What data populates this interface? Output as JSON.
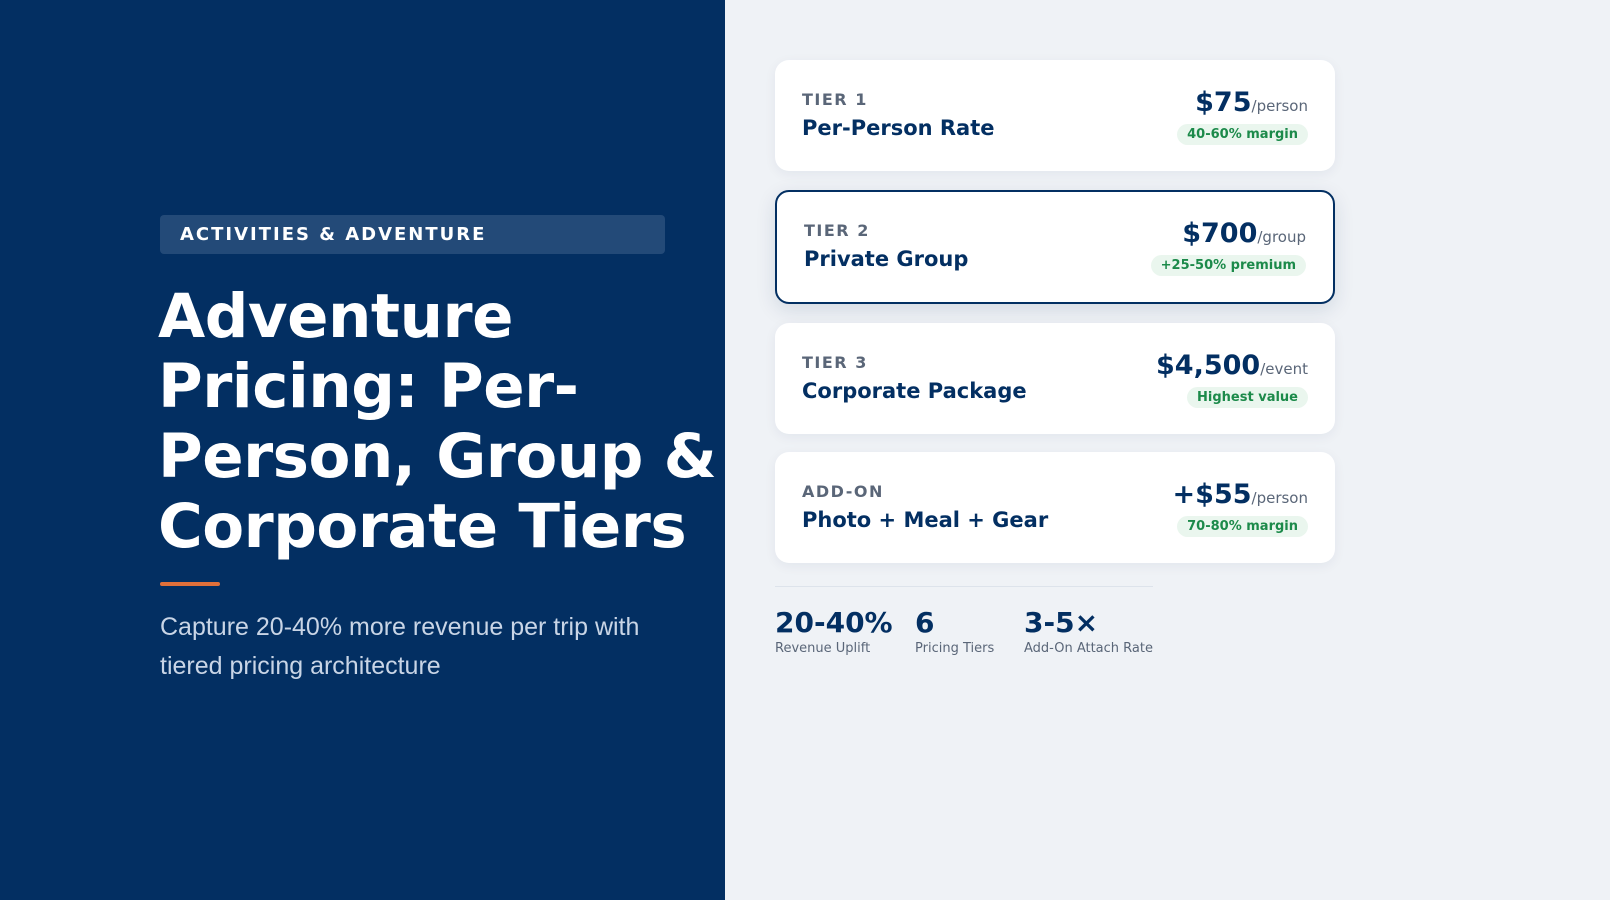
{
  "left": {
    "category": "ACTIVITIES & ADVENTURE",
    "title": "Adventure Pricing: Per-Person, Group & Corporate Tiers",
    "subtitle": "Capture 20-40% more revenue per trip with tiered pricing architecture"
  },
  "tiers": [
    {
      "label": "TIER 1",
      "name": "Per-Person Rate",
      "price": "$75",
      "unit": "/person",
      "badge": "40-60% margin"
    },
    {
      "label": "TIER 2",
      "name": "Private Group",
      "price": "$700",
      "unit": "/group",
      "badge": "+25-50% premium"
    },
    {
      "label": "TIER 3",
      "name": "Corporate Package",
      "price": "$4,500",
      "unit": "/event",
      "badge": "Highest value"
    },
    {
      "label": "ADD-ON",
      "name": "Photo + Meal + Gear",
      "price": "+$55",
      "unit": "/person",
      "badge": "70-80% margin"
    }
  ],
  "stats": [
    {
      "value": "20-40%",
      "label": "Revenue Uplift"
    },
    {
      "value": "6",
      "label": "Pricing Tiers"
    },
    {
      "value": "3-5×",
      "label": "Add-On Attach Rate"
    }
  ],
  "colors": {
    "navy": "#032f62",
    "accent": "#e0703a",
    "badge_green": "#1c8a4a",
    "badge_bg": "#eaf6ee",
    "panel_bg": "#eff2f6"
  }
}
